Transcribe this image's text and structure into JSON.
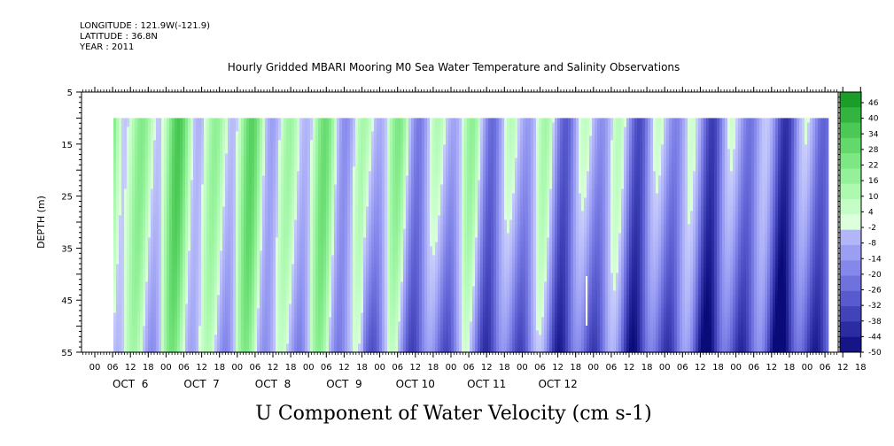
{
  "header": {
    "longitude": "LONGITUDE : 121.9W(-121.9)",
    "latitude": "LATITUDE : 36.8N",
    "year": "YEAR : 2011"
  },
  "chart_data": {
    "type": "heatmap",
    "title": "Hourly Gridded MBARI Mooring M0 Sea Water Temperature and Salinity Observations",
    "ylabel": "DEPTH (m)",
    "caption": "U Component of Water Velocity (cm s-1)",
    "y_ticks": [
      5,
      15,
      25,
      35,
      45,
      55
    ],
    "ylim": [
      5,
      55
    ],
    "y_data_range": [
      10,
      55
    ],
    "x_hour_ticks": [
      "00",
      "06",
      "12",
      "18",
      "00",
      "06",
      "12",
      "18",
      "00",
      "06",
      "12",
      "18",
      "00",
      "06",
      "12",
      "18",
      "00",
      "06",
      "12",
      "18",
      "00",
      "06",
      "12",
      "18",
      "00",
      "06",
      "12",
      "18",
      "00",
      "06",
      "12",
      "18",
      "00",
      "06",
      "12",
      "18",
      "00",
      "06",
      "12",
      "18",
      "00",
      "06",
      "12",
      "18"
    ],
    "x_day_labels": [
      "OCT  6",
      "OCT  7",
      "OCT  8",
      "OCT  9",
      "OCT 10",
      "OCT 11",
      "OCT 12"
    ],
    "colorbar": {
      "labels": [
        46,
        40,
        34,
        28,
        22,
        16,
        10,
        4,
        -2,
        -8,
        -14,
        -20,
        -26,
        -32,
        -38,
        -44,
        -50
      ],
      "range": [
        -50,
        50
      ],
      "positive_color": "#19d23c",
      "negative_color": "#4466e6"
    },
    "features": [
      {
        "desc": "positive (eastward) flow dominant",
        "period": "Oct 6 - Oct 10"
      },
      {
        "desc": "negative (westward) flow dominant near bottom",
        "period": "Oct 10 - Oct 12"
      }
    ]
  }
}
